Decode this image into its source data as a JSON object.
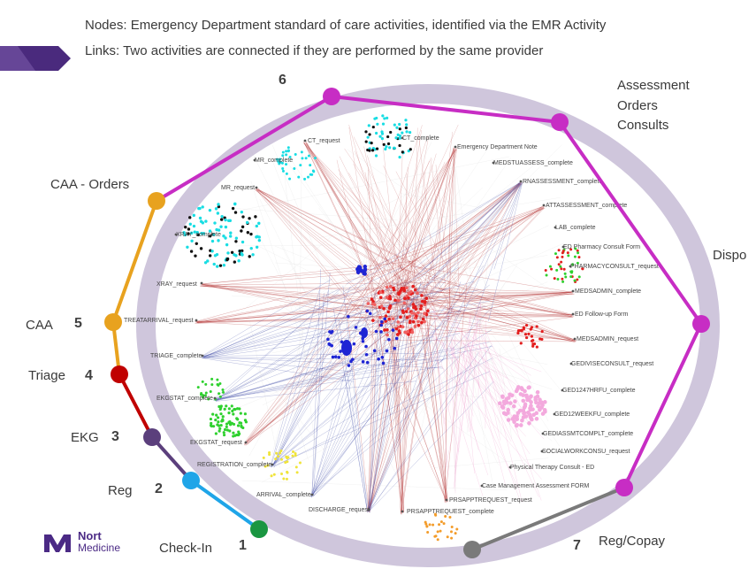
{
  "header": {
    "line1": "Nodes: Emergency Department standard of care activities, identified via the EMR Activity",
    "line2": "Links: Two activities are connected if they are performed by the same provider"
  },
  "stages": [
    {
      "label": "Check-In",
      "number": "1",
      "color": "#1a9641"
    },
    {
      "label": "Reg",
      "number": "2",
      "color": "#1fa5e8"
    },
    {
      "label": "EKG",
      "number": "3",
      "color": "#5b3f7c"
    },
    {
      "label": "Triage",
      "number": "4",
      "color": "#c00000"
    },
    {
      "label": "CAA",
      "number": "5",
      "color": "#e8a21f"
    },
    {
      "label": "CAA - Orders",
      "number": "",
      "color": "#e8a21f"
    },
    {
      "label": "",
      "number": "6",
      "color": "#c72dc4"
    },
    {
      "label": "Assessment\nOrders\nConsults",
      "number": "",
      "color": "#c72dc4"
    },
    {
      "label": "Dispo",
      "number": "",
      "color": "#c72dc4"
    },
    {
      "label": "Reg/Copay",
      "number": "7",
      "color": "#7a7a7a"
    }
  ],
  "stage_labels": {
    "check_in": "Check-In",
    "reg": "Reg",
    "ekg": "EKG",
    "triage": "Triage",
    "caa": "CAA",
    "caa_orders": "CAA - Orders",
    "assessment": "Assessment",
    "orders": "Orders",
    "consults": "Consults",
    "dispo": "Dispo",
    "reg_copay": "Reg/Copay"
  },
  "stage_numbers": {
    "n1": "1",
    "n2": "2",
    "n3": "3",
    "n4": "4",
    "n5": "5",
    "n6": "6",
    "n7": "7"
  },
  "nodes": [
    {
      "id": "ct_request",
      "label": "CT_request"
    },
    {
      "id": "ct_complete",
      "label": "CT_complete"
    },
    {
      "id": "mr_complete",
      "label": "MR_complete"
    },
    {
      "id": "mr_request",
      "label": "MR_request"
    },
    {
      "id": "xray_complete",
      "label": "XRAY_complete"
    },
    {
      "id": "xray_request",
      "label": "XRAY_request"
    },
    {
      "id": "trearrival_request",
      "label": "TREATARRIVAL_request"
    },
    {
      "id": "triage_complete",
      "label": "TRIAGE_complete"
    },
    {
      "id": "ekgstat_complete",
      "label": "EKGSTAT_complete"
    },
    {
      "id": "ekgstat_request",
      "label": "EKGSTAT_request"
    },
    {
      "id": "registration_complete",
      "label": "REGISTRATION_complete"
    },
    {
      "id": "arrival_complete",
      "label": "ARRIVAL_complete"
    },
    {
      "id": "discharge_request",
      "label": "DISCHARGE_request"
    },
    {
      "id": "prsappt_complete",
      "label": "PRSAPPTREQUEST_complete"
    },
    {
      "id": "prsappt_request",
      "label": "PRSAPPTREQUEST_request"
    },
    {
      "id": "case_mgmt",
      "label": "Case Management Assessment FORM"
    },
    {
      "id": "pt_consult",
      "label": "Physical Therapy Consult - ED"
    },
    {
      "id": "socialwork",
      "label": "SOCIALWORKCONSU_request"
    },
    {
      "id": "gediassm",
      "label": "GEDIASSMTCOMPLT_complete"
    },
    {
      "id": "ged12week",
      "label": "GED12WEEKFU_complete"
    },
    {
      "id": "ged1247",
      "label": "GED1247HRFU_complete"
    },
    {
      "id": "gediviseconsult",
      "label": "GEDIVISECONSULT_request"
    },
    {
      "id": "medsadmin_request",
      "label": "MEDSADMIN_request"
    },
    {
      "id": "ed_followup",
      "label": "ED Follow-up Form"
    },
    {
      "id": "medsadmin_complete",
      "label": "MEDSADMIN_complete"
    },
    {
      "id": "pharmacyconsult",
      "label": "PHARMACYCONSULT_request"
    },
    {
      "id": "ed_pharm_form",
      "label": "ED Pharmacy Consult Form"
    },
    {
      "id": "lab_complete",
      "label": "LAB_complete"
    },
    {
      "id": "attassessment",
      "label": "ATTASSESSMENT_complete"
    },
    {
      "id": "rnassessment",
      "label": "RNASSESSMENT_complete"
    },
    {
      "id": "medstuasses",
      "label": "MEDSTUASSESS_complete"
    },
    {
      "id": "ed_note",
      "label": "Emergency Department Note"
    }
  ],
  "logo": {
    "line1": "Nort",
    "line2": "Medicine"
  },
  "colors": {
    "ring": "#cfc6dc",
    "edge_red": "#b02a2a",
    "edge_blue": "#2c3a9e",
    "edge_pink": "#e873b8",
    "cyan": "#19dde3",
    "green": "#2fd12f",
    "yellow": "#f0e43a",
    "orange": "#f39c2a",
    "blue": "#1f25d4",
    "red": "#e31f1f",
    "pink": "#f3a9dd"
  }
}
